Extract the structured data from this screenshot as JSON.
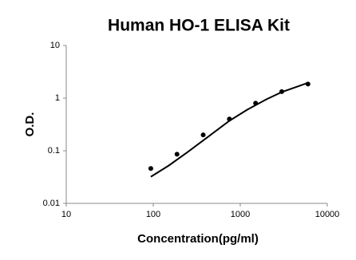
{
  "chart_data": {
    "type": "scatter",
    "title": "Human HO-1 ELISA Kit",
    "x_label": "Concentration(pg/ml)",
    "y_label": "O.D.",
    "xscale": "log",
    "yscale": "log",
    "xlim": [
      10,
      10000
    ],
    "ylim": [
      0.01,
      10
    ],
    "xticks": [
      10,
      100,
      1000,
      10000
    ],
    "yticks": [
      0.01,
      0.1,
      1,
      10
    ],
    "series": [
      {
        "mode": "markers",
        "color": "#000000",
        "x": [
          93.75,
          187.5,
          375,
          750,
          1500,
          3000,
          6000
        ],
        "values": [
          0.046,
          0.086,
          0.2,
          0.4,
          0.8,
          1.33,
          1.85
        ]
      },
      {
        "mode": "line",
        "color": "#000000",
        "x": [
          93.75,
          150,
          250,
          400,
          750,
          1200,
          2000,
          3000,
          4500,
          6000
        ],
        "values": [
          0.032,
          0.052,
          0.095,
          0.17,
          0.37,
          0.6,
          0.95,
          1.3,
          1.65,
          1.95
        ]
      }
    ]
  }
}
